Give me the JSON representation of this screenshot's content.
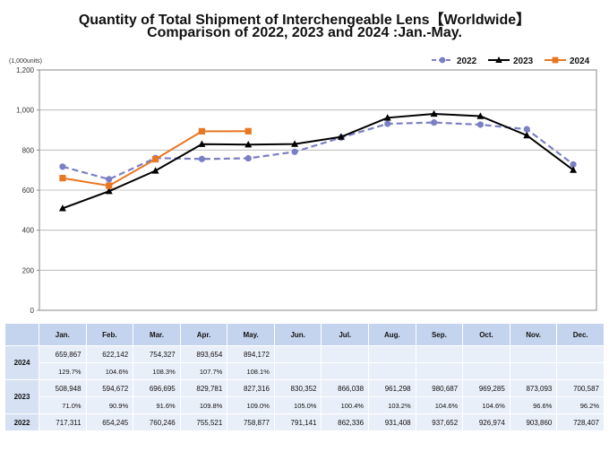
{
  "title_line1": "Quantity of Total Shipment of Interchengeable Lens【Worldwide】",
  "title_line2": "Comparison of 2022, 2023 and 2024 :Jan.-May.",
  "chart_data": {
    "type": "line",
    "title": "Quantity of Total Shipment of Interchengeable Lens【Worldwide】 Comparison of 2022, 2023 and 2024 :Jan.-May.",
    "unit_label": "(1,000units)",
    "ylim": [
      0,
      1200
    ],
    "yticks": [
      0,
      200,
      400,
      600,
      800,
      1000,
      1200
    ],
    "ytick_labels": [
      "0",
      "200",
      "400",
      "600",
      "800",
      "1,000",
      "1,200"
    ],
    "legend_position": "top-right",
    "series": [
      {
        "name": "2022",
        "color": "#7b7fc4",
        "dashed": true,
        "marker": "circle",
        "values": [
          717.311,
          654.245,
          760.246,
          755.521,
          758.877,
          791.141,
          862.336,
          931.408,
          937.652,
          926.974,
          903.86,
          728.407
        ]
      },
      {
        "name": "2023",
        "color": "#000000",
        "dashed": false,
        "marker": "triangle",
        "values": [
          508.948,
          594.672,
          696.695,
          829.781,
          827.316,
          830.352,
          866.038,
          961.298,
          980.687,
          969.285,
          873.093,
          700.587
        ]
      },
      {
        "name": "2024",
        "color": "#e87722",
        "dashed": false,
        "marker": "square",
        "values": [
          659.867,
          622.142,
          754.327,
          893.654,
          894.172
        ]
      }
    ]
  },
  "table": {
    "months": [
      "Jan.",
      "Feb.",
      "Mar.",
      "Apr.",
      "May.",
      "Jun.",
      "Jul.",
      "Aug.",
      "Sep.",
      "Oct.",
      "Nov.",
      "Dec."
    ],
    "rows": [
      {
        "year": "2024",
        "values": [
          "659,867",
          "622,142",
          "754,327",
          "893,654",
          "894,172",
          "",
          "",
          "",
          "",
          "",
          "",
          ""
        ],
        "pcts": [
          "129.7%",
          "104.6%",
          "108.3%",
          "107.7%",
          "108.1%",
          "",
          "",
          "",
          "",
          "",
          "",
          ""
        ]
      },
      {
        "year": "2023",
        "values": [
          "508,948",
          "594,672",
          "696,695",
          "829,781",
          "827,316",
          "830,352",
          "866,038",
          "961,298",
          "980,687",
          "969,285",
          "873,093",
          "700,587"
        ],
        "pcts": [
          "71.0%",
          "90.9%",
          "91.6%",
          "109.8%",
          "109.0%",
          "105.0%",
          "100.4%",
          "103.2%",
          "104.6%",
          "104.6%",
          "96.6%",
          "96.2%"
        ]
      },
      {
        "year": "2022",
        "values": [
          "717,311",
          "654,245",
          "760,246",
          "755,521",
          "758,877",
          "791,141",
          "862,336",
          "931,408",
          "937,652",
          "926,974",
          "903,860",
          "728,407"
        ]
      }
    ]
  }
}
